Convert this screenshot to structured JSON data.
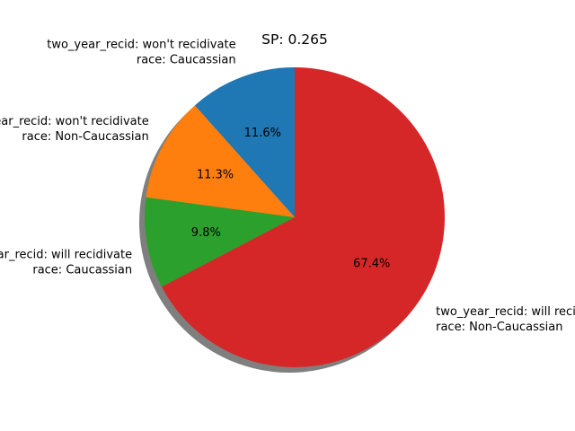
{
  "chart_data": {
    "type": "pie",
    "title": "SP: 0.265",
    "shadow": true,
    "start_angle_deg": 90,
    "direction": "counterclockwise",
    "slices": [
      {
        "label_lines": [
          "two_year_recid: won't recidivate",
          "race: Caucassian"
        ],
        "value": 11.6,
        "pct_label": "11.6%",
        "color": "#1f77b4"
      },
      {
        "label_lines": [
          "two_year_recid: won't recidivate",
          "race: Non-Caucassian"
        ],
        "value": 11.3,
        "pct_label": "11.3%",
        "color": "#ff7f0e"
      },
      {
        "label_lines": [
          "two_year_recid: will recidivate",
          "race: Caucassian"
        ],
        "value": 9.8,
        "pct_label": "9.8%",
        "color": "#2ca02c"
      },
      {
        "label_lines": [
          "two_year_recid: will recidivate",
          "race: Non-Caucassian"
        ],
        "value": 67.4,
        "pct_label": "67.4%",
        "color": "#d62728"
      }
    ]
  }
}
